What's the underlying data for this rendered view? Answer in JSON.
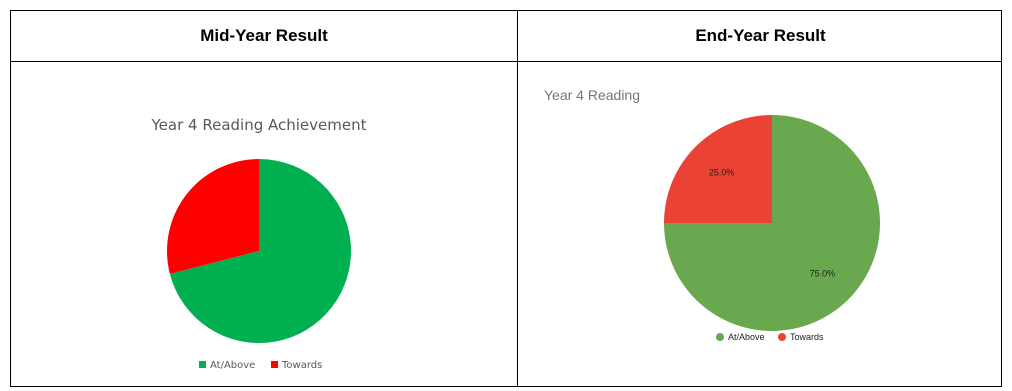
{
  "table": {
    "left_header": "Mid-Year Result",
    "right_header": "End-Year Result"
  },
  "chart_data": [
    {
      "type": "pie",
      "title": "Year 4 Reading Achievement",
      "categories": [
        "At/Above",
        "Towards"
      ],
      "values": [
        71,
        29
      ],
      "colors": [
        "#00b050",
        "#ff0000"
      ],
      "start_angle_deg": 0,
      "direction": "clockwise",
      "legend": "bottom",
      "data_labels": []
    },
    {
      "type": "pie",
      "title": "Year 4 Reading",
      "categories": [
        "At/Above",
        "Towards"
      ],
      "values": [
        75.0,
        25.0
      ],
      "colors": [
        "#6aa84f",
        "#ea4335"
      ],
      "start_angle_deg": 0,
      "direction": "clockwise",
      "legend": "bottom",
      "data_labels": [
        "75.0%",
        "25.0%"
      ]
    }
  ]
}
